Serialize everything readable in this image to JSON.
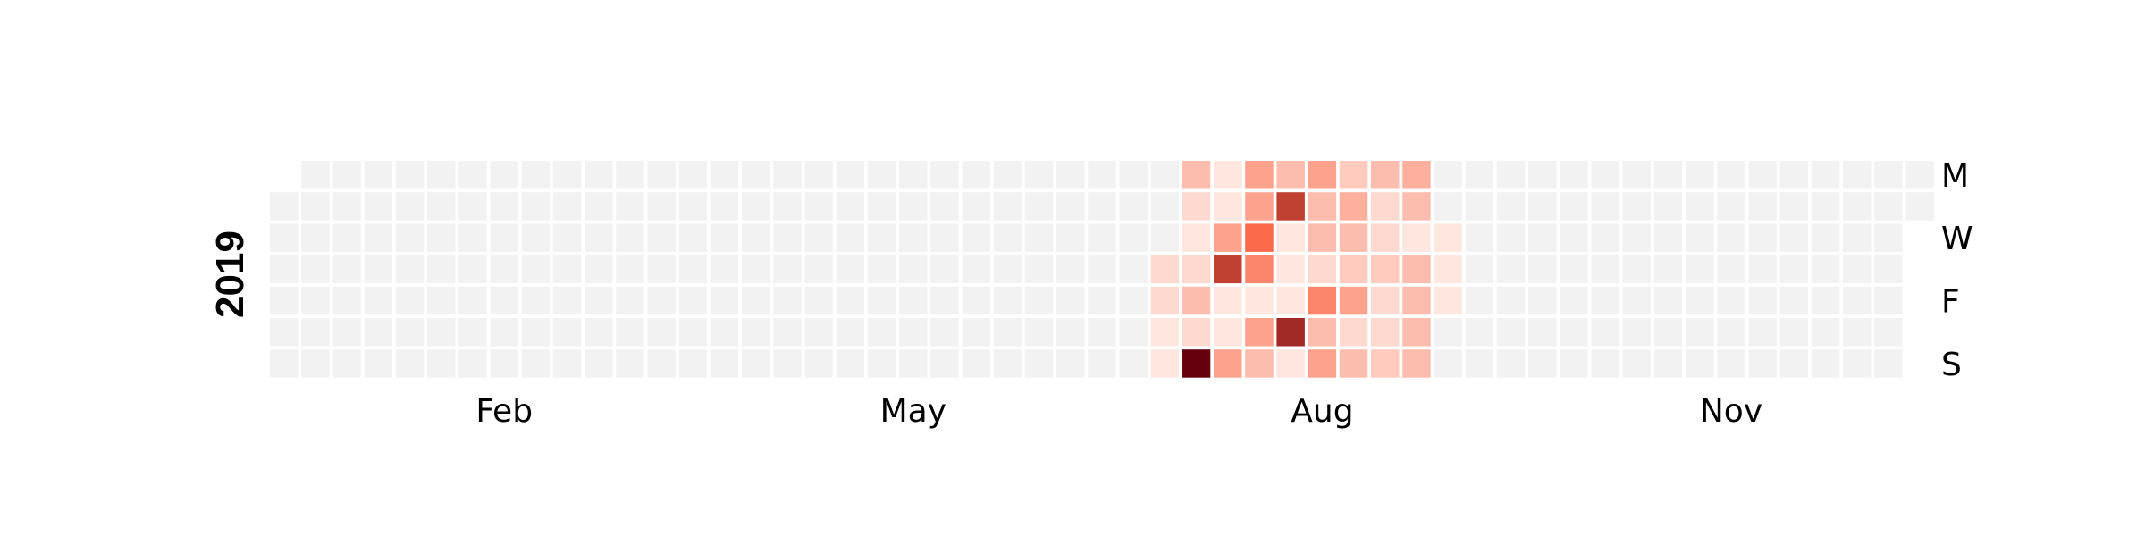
{
  "chart_data": {
    "type": "heatmap",
    "year": "2019",
    "row_tick_labels": [
      "M",
      "W",
      "F",
      "S"
    ],
    "column_tick_labels": [
      "Feb",
      "May",
      "Aug",
      "Nov"
    ],
    "color_scale": {
      "empty": "#f2f2f2",
      "low": "#fff5f0",
      "mid": "#fb6a4a",
      "high": "#67000d"
    },
    "scale_max": 10,
    "weeks": [
      {
        "week": 28,
        "values": [
          0,
          0,
          0,
          1,
          1,
          0.5,
          0.5
        ]
      },
      {
        "week": 29,
        "values": [
          2,
          1,
          0.5,
          1,
          2,
          1,
          10
        ]
      },
      {
        "week": 30,
        "values": [
          0.5,
          0.5,
          3,
          7,
          0.5,
          0.5,
          3
        ]
      },
      {
        "week": 31,
        "values": [
          3,
          3,
          5,
          4,
          0.5,
          3,
          2
        ]
      },
      {
        "week": 32,
        "values": [
          2,
          7,
          0.5,
          0.5,
          0.5,
          8,
          0.5
        ]
      },
      {
        "week": 33,
        "values": [
          3,
          2,
          2,
          1,
          4,
          2,
          3
        ]
      },
      {
        "week": 34,
        "values": [
          1.5,
          2.5,
          2,
          1.5,
          3,
          1,
          2
        ]
      },
      {
        "week": 35,
        "values": [
          2,
          1,
          1,
          1.5,
          1,
          1,
          1.5
        ]
      },
      {
        "week": 36,
        "values": [
          2.5,
          2,
          0.5,
          2,
          2,
          2,
          2
        ]
      },
      {
        "week": 37,
        "values": [
          0,
          0,
          0.5,
          0.5,
          0.5,
          0,
          0
        ]
      }
    ]
  }
}
